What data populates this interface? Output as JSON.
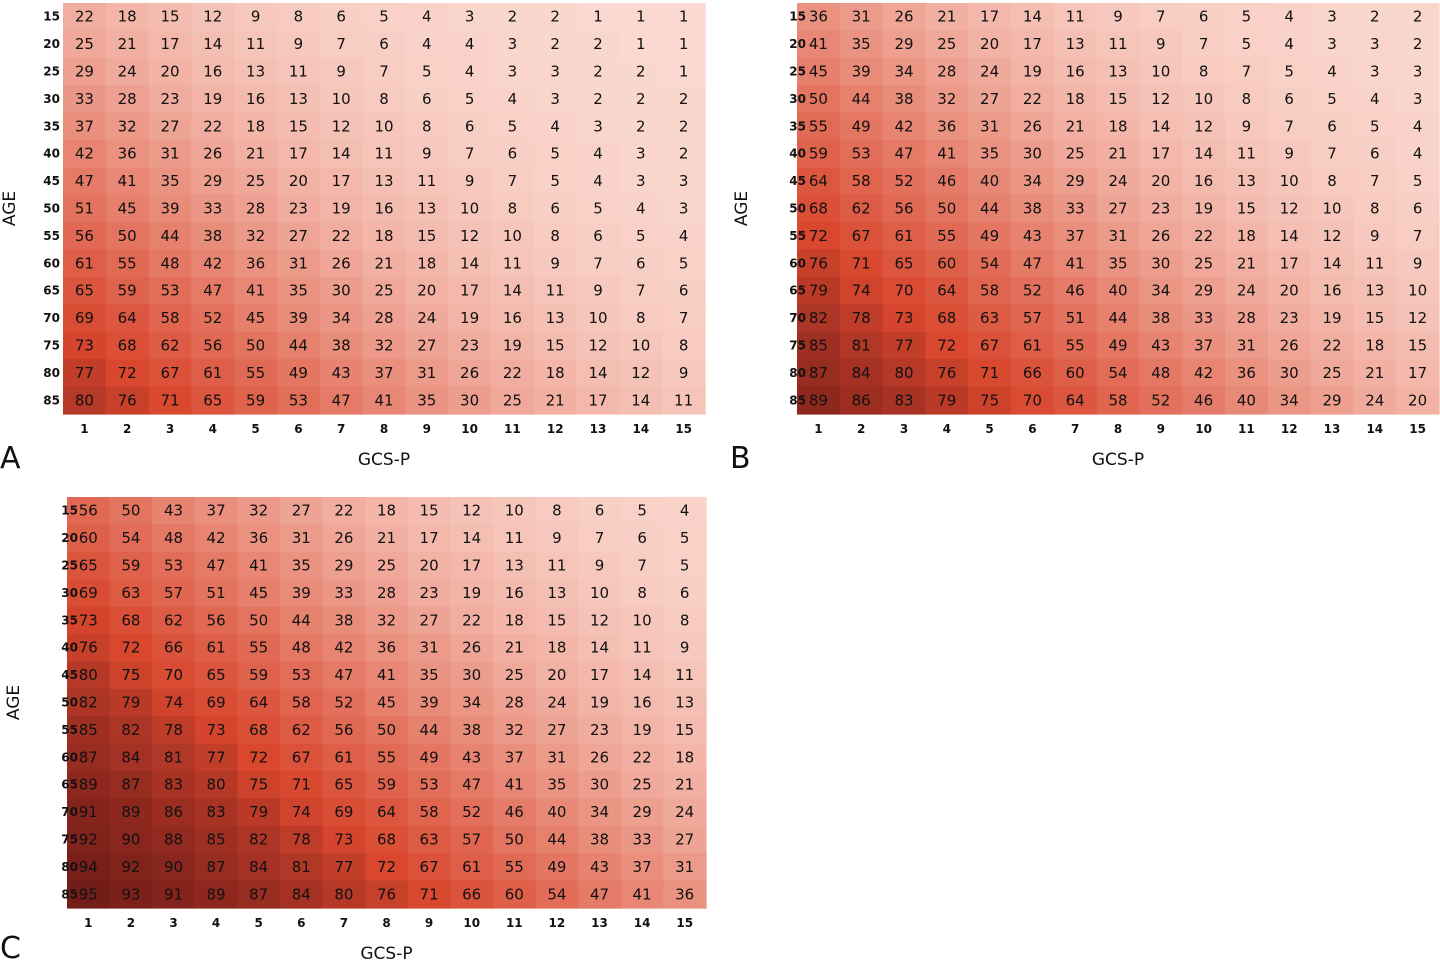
{
  "colors": {
    "low": "#fbdbd2",
    "high": "#5d1414",
    "text_dark": "#111111",
    "text_light": "#111111"
  },
  "chart_data": [
    {
      "type": "heatmap",
      "panel_label": "A",
      "xlabel": "GCS-P",
      "ylabel": "AGE",
      "x_ticks": [
        "1",
        "2",
        "3",
        "4",
        "5",
        "6",
        "7",
        "8",
        "9",
        "10",
        "11",
        "12",
        "13",
        "14",
        "15"
      ],
      "y_ticks": [
        "15",
        "20",
        "25",
        "30",
        "35",
        "40",
        "45",
        "50",
        "55",
        "60",
        "65",
        "70",
        "75",
        "80",
        "85"
      ],
      "values": [
        [
          22,
          18,
          15,
          12,
          9,
          8,
          6,
          5,
          4,
          3,
          2,
          2,
          1,
          1,
          1
        ],
        [
          25,
          21,
          17,
          14,
          11,
          9,
          7,
          6,
          4,
          4,
          3,
          2,
          2,
          1,
          1
        ],
        [
          29,
          24,
          20,
          16,
          13,
          11,
          9,
          7,
          5,
          4,
          3,
          3,
          2,
          2,
          1
        ],
        [
          33,
          28,
          23,
          19,
          16,
          13,
          10,
          8,
          6,
          5,
          4,
          3,
          2,
          2,
          2
        ],
        [
          37,
          32,
          27,
          22,
          18,
          15,
          12,
          10,
          8,
          6,
          5,
          4,
          3,
          2,
          2
        ],
        [
          42,
          36,
          31,
          26,
          21,
          17,
          14,
          11,
          9,
          7,
          6,
          5,
          4,
          3,
          2
        ],
        [
          47,
          41,
          35,
          29,
          25,
          20,
          17,
          13,
          11,
          9,
          7,
          5,
          4,
          3,
          3
        ],
        [
          51,
          45,
          39,
          33,
          28,
          23,
          19,
          16,
          13,
          10,
          8,
          6,
          5,
          4,
          3
        ],
        [
          56,
          50,
          44,
          38,
          32,
          27,
          22,
          18,
          15,
          12,
          10,
          8,
          6,
          5,
          4
        ],
        [
          61,
          55,
          48,
          42,
          36,
          31,
          26,
          21,
          18,
          14,
          11,
          9,
          7,
          6,
          5
        ],
        [
          65,
          59,
          53,
          47,
          41,
          35,
          30,
          25,
          20,
          17,
          14,
          11,
          9,
          7,
          6
        ],
        [
          69,
          64,
          58,
          52,
          45,
          39,
          34,
          28,
          24,
          19,
          16,
          13,
          10,
          8,
          7
        ],
        [
          73,
          68,
          62,
          56,
          50,
          44,
          38,
          32,
          27,
          23,
          19,
          15,
          12,
          10,
          8
        ],
        [
          77,
          72,
          67,
          61,
          55,
          49,
          43,
          37,
          31,
          26,
          22,
          18,
          14,
          12,
          9
        ],
        [
          80,
          76,
          71,
          65,
          59,
          53,
          47,
          41,
          35,
          30,
          25,
          21,
          17,
          14,
          11
        ]
      ]
    },
    {
      "type": "heatmap",
      "panel_label": "B",
      "xlabel": "GCS-P",
      "ylabel": "AGE",
      "x_ticks": [
        "1",
        "2",
        "3",
        "4",
        "5",
        "6",
        "7",
        "8",
        "9",
        "10",
        "11",
        "12",
        "13",
        "14",
        "15"
      ],
      "y_ticks": [
        "15",
        "20",
        "25",
        "30",
        "35",
        "40",
        "45",
        "50",
        "55",
        "60",
        "65",
        "70",
        "75",
        "80",
        "85"
      ],
      "values": [
        [
          36,
          31,
          26,
          21,
          17,
          14,
          11,
          9,
          7,
          6,
          5,
          4,
          3,
          2,
          2
        ],
        [
          41,
          35,
          29,
          25,
          20,
          17,
          13,
          11,
          9,
          7,
          5,
          4,
          3,
          3,
          2
        ],
        [
          45,
          39,
          34,
          28,
          24,
          19,
          16,
          13,
          10,
          8,
          7,
          5,
          4,
          3,
          3
        ],
        [
          50,
          44,
          38,
          32,
          27,
          22,
          18,
          15,
          12,
          10,
          8,
          6,
          5,
          4,
          3
        ],
        [
          55,
          49,
          42,
          36,
          31,
          26,
          21,
          18,
          14,
          12,
          9,
          7,
          6,
          5,
          4
        ],
        [
          59,
          53,
          47,
          41,
          35,
          30,
          25,
          21,
          17,
          14,
          11,
          9,
          7,
          6,
          4
        ],
        [
          64,
          58,
          52,
          46,
          40,
          34,
          29,
          24,
          20,
          16,
          13,
          10,
          8,
          7,
          5
        ],
        [
          68,
          62,
          56,
          50,
          44,
          38,
          33,
          27,
          23,
          19,
          15,
          12,
          10,
          8,
          6
        ],
        [
          72,
          67,
          61,
          55,
          49,
          43,
          37,
          31,
          26,
          22,
          18,
          14,
          12,
          9,
          7
        ],
        [
          76,
          71,
          65,
          60,
          54,
          47,
          41,
          35,
          30,
          25,
          21,
          17,
          14,
          11,
          9
        ],
        [
          79,
          74,
          70,
          64,
          58,
          52,
          46,
          40,
          34,
          29,
          24,
          20,
          16,
          13,
          10
        ],
        [
          82,
          78,
          73,
          68,
          63,
          57,
          51,
          44,
          38,
          33,
          28,
          23,
          19,
          15,
          12
        ],
        [
          85,
          81,
          77,
          72,
          67,
          61,
          55,
          49,
          43,
          37,
          31,
          26,
          22,
          18,
          15
        ],
        [
          87,
          84,
          80,
          76,
          71,
          66,
          60,
          54,
          48,
          42,
          36,
          30,
          25,
          21,
          17
        ],
        [
          89,
          86,
          83,
          79,
          75,
          70,
          64,
          58,
          52,
          46,
          40,
          34,
          29,
          24,
          20
        ]
      ]
    },
    {
      "type": "heatmap",
      "panel_label": "C",
      "xlabel": "GCS-P",
      "ylabel": "AGE",
      "x_ticks": [
        "1",
        "2",
        "3",
        "4",
        "5",
        "6",
        "7",
        "8",
        "9",
        "10",
        "11",
        "12",
        "13",
        "14",
        "15"
      ],
      "y_ticks": [
        "15",
        "20",
        "25",
        "30",
        "35",
        "40",
        "45",
        "50",
        "55",
        "60",
        "65",
        "70",
        "75",
        "80",
        "85"
      ],
      "values": [
        [
          56,
          50,
          43,
          37,
          32,
          27,
          22,
          18,
          15,
          12,
          10,
          8,
          6,
          5,
          4
        ],
        [
          60,
          54,
          48,
          42,
          36,
          31,
          26,
          21,
          17,
          14,
          11,
          9,
          7,
          6,
          5
        ],
        [
          65,
          59,
          53,
          47,
          41,
          35,
          29,
          25,
          20,
          17,
          13,
          11,
          9,
          7,
          5
        ],
        [
          69,
          63,
          57,
          51,
          45,
          39,
          33,
          28,
          23,
          19,
          16,
          13,
          10,
          8,
          6
        ],
        [
          73,
          68,
          62,
          56,
          50,
          44,
          38,
          32,
          27,
          22,
          18,
          15,
          12,
          10,
          8
        ],
        [
          76,
          72,
          66,
          61,
          55,
          48,
          42,
          36,
          31,
          26,
          21,
          18,
          14,
          11,
          9
        ],
        [
          80,
          75,
          70,
          65,
          59,
          53,
          47,
          41,
          35,
          30,
          25,
          20,
          17,
          14,
          11
        ],
        [
          82,
          79,
          74,
          69,
          64,
          58,
          52,
          45,
          39,
          34,
          28,
          24,
          19,
          16,
          13
        ],
        [
          85,
          82,
          78,
          73,
          68,
          62,
          56,
          50,
          44,
          38,
          32,
          27,
          23,
          19,
          15
        ],
        [
          87,
          84,
          81,
          77,
          72,
          67,
          61,
          55,
          49,
          43,
          37,
          31,
          26,
          22,
          18
        ],
        [
          89,
          87,
          83,
          80,
          75,
          71,
          65,
          59,
          53,
          47,
          41,
          35,
          30,
          25,
          21
        ],
        [
          91,
          89,
          86,
          83,
          79,
          74,
          69,
          64,
          58,
          52,
          46,
          40,
          34,
          29,
          24
        ],
        [
          92,
          90,
          88,
          85,
          82,
          78,
          73,
          68,
          63,
          57,
          50,
          44,
          38,
          33,
          27
        ],
        [
          94,
          92,
          90,
          87,
          84,
          81,
          77,
          72,
          67,
          61,
          55,
          49,
          43,
          37,
          31
        ],
        [
          95,
          93,
          91,
          89,
          87,
          84,
          80,
          76,
          71,
          66,
          60,
          54,
          47,
          41,
          36
        ]
      ]
    }
  ]
}
